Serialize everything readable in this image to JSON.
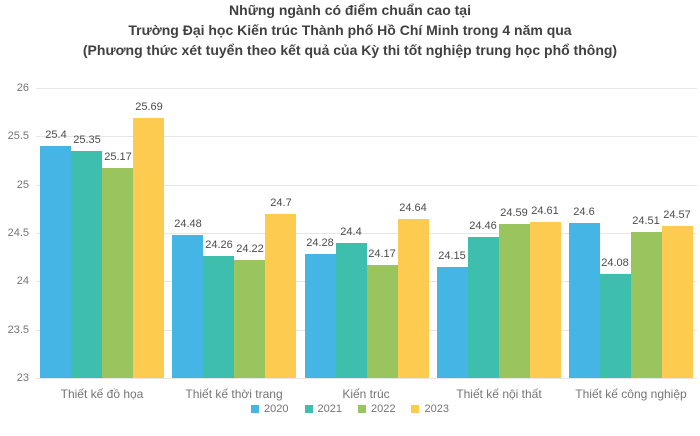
{
  "title": {
    "line1": "Những ngành có điểm chuẩn cao tại",
    "line2": "Trường Đại học Kiến trúc Thành phố Hồ Chí Minh trong 4 năm qua",
    "line3": "(Phương thức xét tuyển theo kết quả của Kỳ thi tốt nghiệp trung học phổ thông)"
  },
  "chart_data": {
    "type": "bar",
    "title": "Những ngành có điểm chuẩn cao tại Trường Đại học Kiến trúc Thành phố Hồ Chí Minh trong 4 năm qua (Phương thức xét tuyển theo kết quả của Kỳ thi tốt nghiệp trung học phổ thông)",
    "categories": [
      "Thiết kế đồ họa",
      "Thiết kế thời trang",
      "Kiến trúc",
      "Thiết kế nội thất",
      "Thiết kế công nghiệp"
    ],
    "series": [
      {
        "name": "2020",
        "color": "#45b5e6",
        "values": [
          25.4,
          24.48,
          24.28,
          24.15,
          24.6
        ]
      },
      {
        "name": "2021",
        "color": "#3ebfad",
        "values": [
          25.35,
          24.26,
          24.4,
          24.46,
          24.08
        ]
      },
      {
        "name": "2022",
        "color": "#99c45e",
        "values": [
          25.17,
          24.22,
          24.17,
          24.59,
          24.51
        ]
      },
      {
        "name": "2023",
        "color": "#fdcb50",
        "values": [
          25.69,
          24.7,
          24.64,
          24.61,
          24.57
        ]
      }
    ],
    "ylim": [
      23,
      26
    ],
    "yticks": [
      23,
      23.5,
      24,
      24.5,
      25,
      25.5,
      26
    ],
    "grid": true,
    "legend_position": "bottom",
    "value_labels": true
  },
  "style": {
    "grid_color": "#e6e6e6",
    "axis_text_color": "#757575",
    "value_label_color": "#4c4c4c",
    "title_color": "#404040",
    "background": "#ffffff"
  }
}
